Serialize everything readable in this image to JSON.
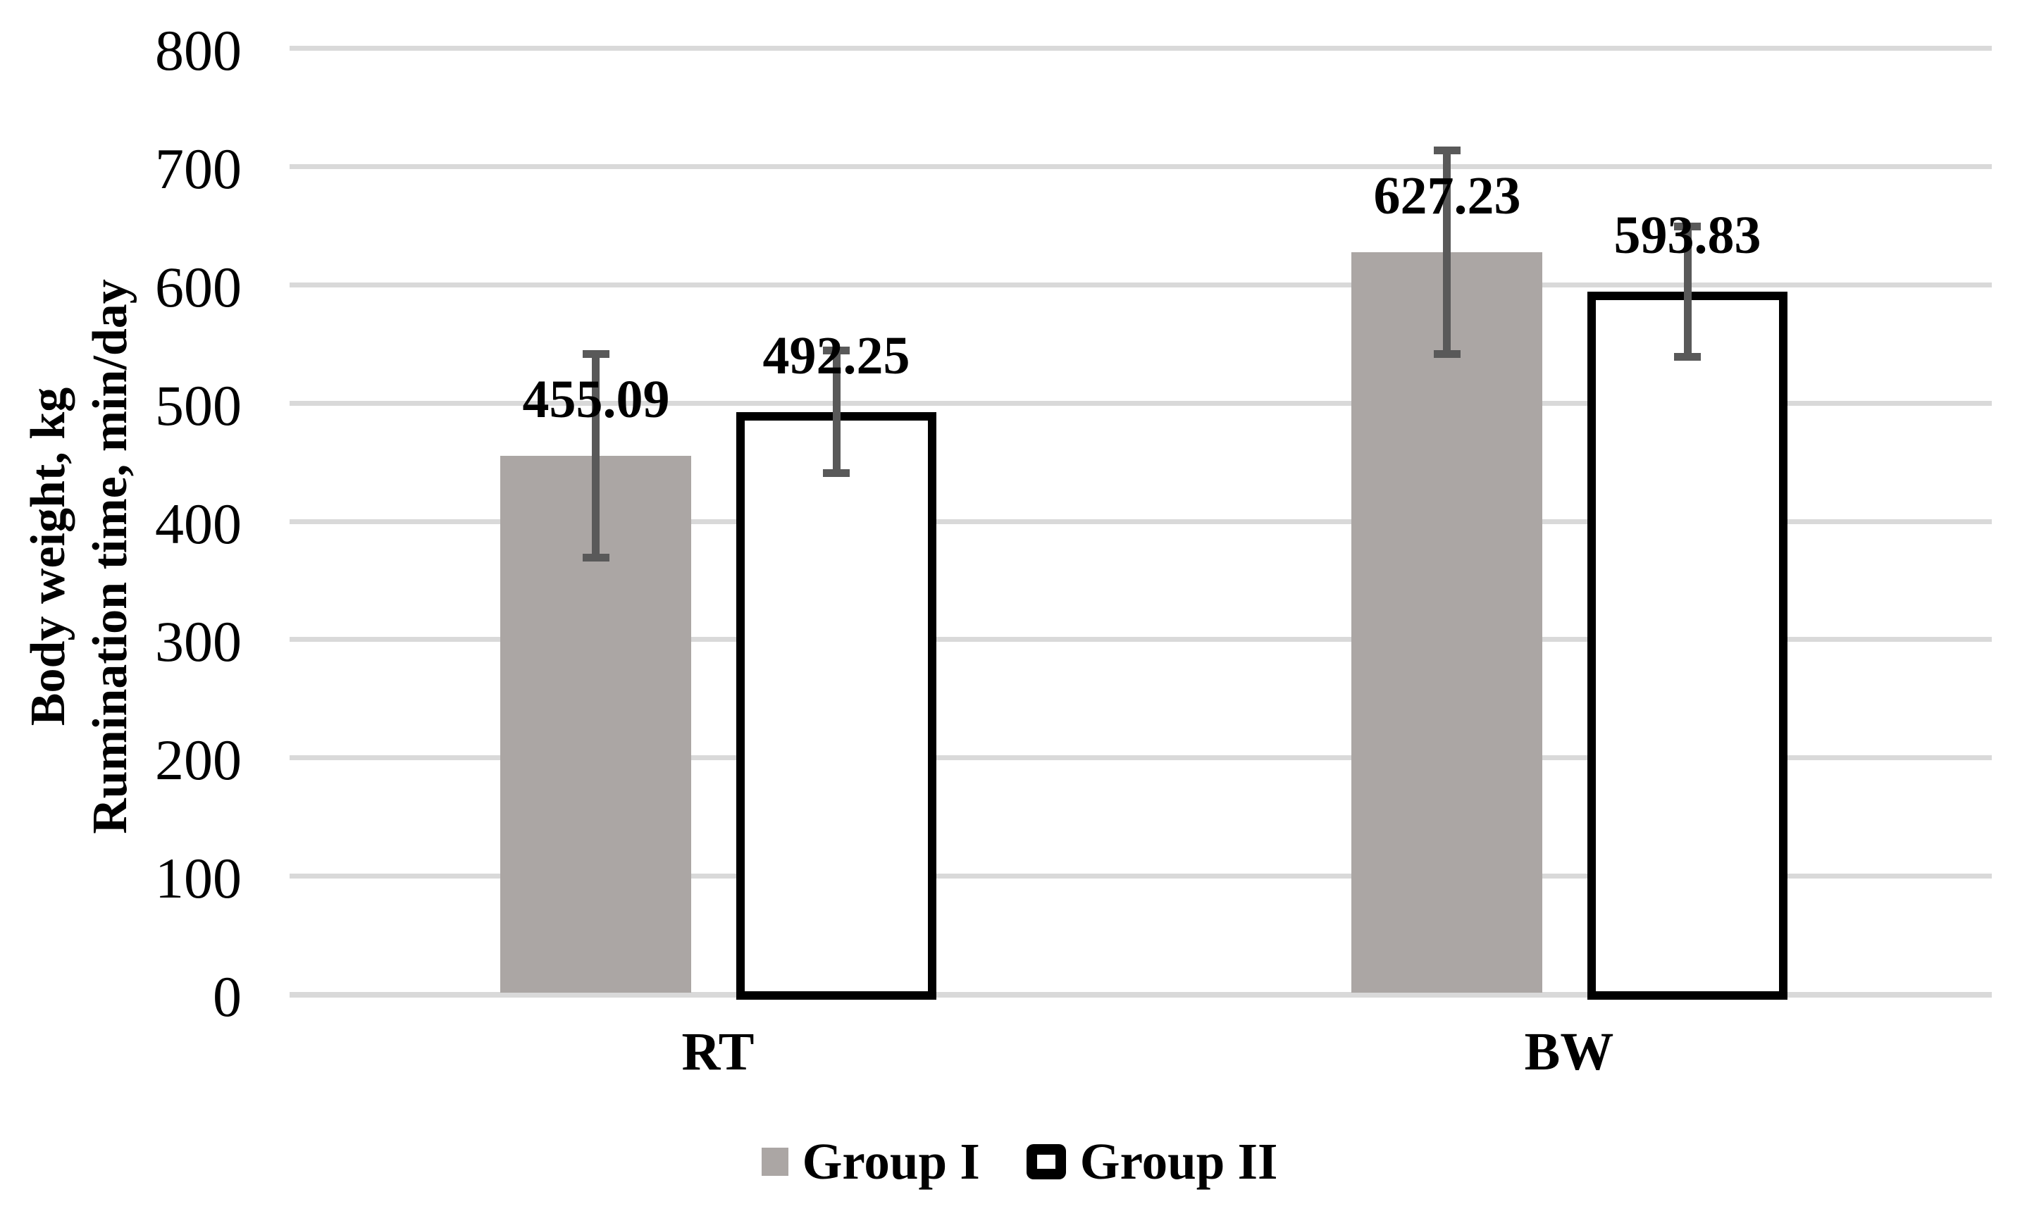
{
  "chart_data": {
    "type": "bar",
    "categories": [
      "RT",
      "BW"
    ],
    "series": [
      {
        "name": "Group I",
        "values": [
          455.09,
          627.23
        ],
        "data_labels": [
          "455.09",
          "627.23"
        ],
        "errors": [
          86,
          86
        ],
        "style": "gray-filled"
      },
      {
        "name": "Group II",
        "values": [
          492.25,
          593.83
        ],
        "data_labels": [
          "492.25",
          "593.83"
        ],
        "errors": [
          52,
          55
        ],
        "style": "white-black-outline"
      }
    ],
    "ylabel_line1": "Body weight, kg",
    "ylabel_line2": "Rumination time, min/day",
    "yticks": [
      0,
      100,
      200,
      300,
      400,
      500,
      600,
      700,
      800
    ],
    "ylim": [
      0,
      800
    ],
    "grid": true,
    "legend_position": "bottom",
    "colors": {
      "bar_gray": "#ABA6A4",
      "bar_outline": "#000000",
      "error_bar": "#595959",
      "gridline": "#D9D9D9",
      "text": "#000000"
    }
  }
}
